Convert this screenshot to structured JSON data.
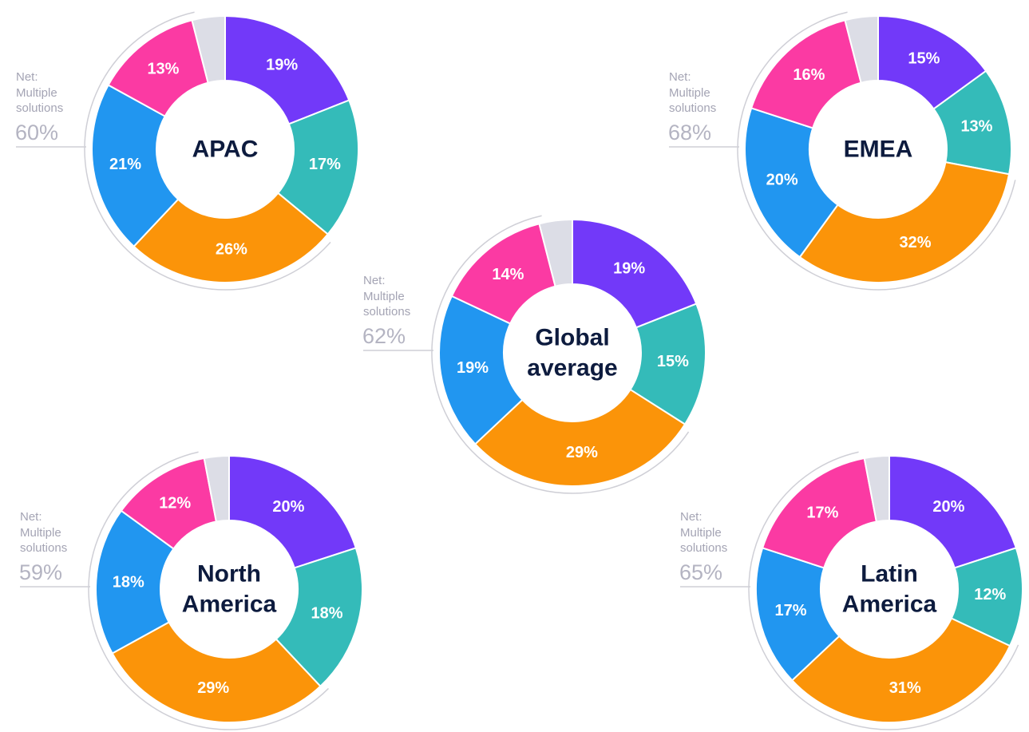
{
  "chart_data": [
    {
      "type": "pie",
      "title": "APAC",
      "values": [
        19,
        17,
        26,
        21,
        13,
        4
      ],
      "value_labels": [
        "19%",
        "17%",
        "26%",
        "21%",
        "13%",
        null
      ],
      "colors": [
        "#7239f9",
        "#34bbb9",
        "#fb9409",
        "#2196f0",
        "#fb3aa3",
        "#dcdde6"
      ],
      "annotation": "Net: Multiple solutions",
      "net": 60,
      "net_label": "60%"
    },
    {
      "type": "pie",
      "title": "EMEA",
      "values": [
        15,
        13,
        32,
        20,
        16,
        4
      ],
      "value_labels": [
        "15%",
        "13%",
        "32%",
        "20%",
        "16%",
        null
      ],
      "colors": [
        "#7239f9",
        "#34bbb9",
        "#fb9409",
        "#2196f0",
        "#fb3aa3",
        "#dcdde6"
      ],
      "annotation": "Net: Multiple solutions",
      "net": 68,
      "net_label": "68%"
    },
    {
      "type": "pie",
      "title": "Global average",
      "values": [
        19,
        15,
        29,
        19,
        14,
        4
      ],
      "value_labels": [
        "19%",
        "15%",
        "29%",
        "19%",
        "14%",
        null
      ],
      "colors": [
        "#7239f9",
        "#34bbb9",
        "#fb9409",
        "#2196f0",
        "#fb3aa3",
        "#dcdde6"
      ],
      "annotation": "Net: Multiple solutions",
      "net": 62,
      "net_label": "62%"
    },
    {
      "type": "pie",
      "title": "North America",
      "values": [
        20,
        18,
        29,
        18,
        12,
        3
      ],
      "value_labels": [
        "20%",
        "18%",
        "29%",
        "18%",
        "12%",
        null
      ],
      "colors": [
        "#7239f9",
        "#34bbb9",
        "#fb9409",
        "#2196f0",
        "#fb3aa3",
        "#dcdde6"
      ],
      "annotation": "Net: Multiple solutions",
      "net": 59,
      "net_label": "59%"
    },
    {
      "type": "pie",
      "title": "Latin America",
      "values": [
        20,
        12,
        31,
        17,
        17,
        3
      ],
      "value_labels": [
        "20%",
        "12%",
        "31%",
        "17%",
        "17%",
        null
      ],
      "colors": [
        "#7239f9",
        "#34bbb9",
        "#fb9409",
        "#2196f0",
        "#fb3aa3",
        "#dcdde6"
      ],
      "annotation": "Net: Multiple solutions",
      "net": 65,
      "net_label": "65%"
    }
  ]
}
